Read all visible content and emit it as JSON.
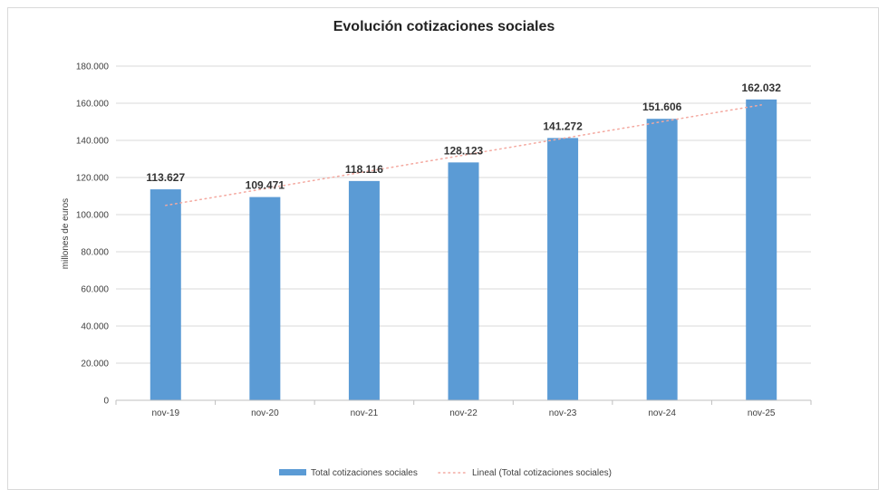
{
  "colors": {
    "bar": "#5b9bd5",
    "trend": "#f4a9a0",
    "grid": "#d9d9d9",
    "axis": "#bfbfbf"
  },
  "chart_data": {
    "type": "bar",
    "title": "Evolución cotizaciones sociales",
    "xlabel": "",
    "ylabel": "millones de euros",
    "categories": [
      "nov-19",
      "nov-20",
      "nov-21",
      "nov-22",
      "nov-23",
      "nov-24",
      "nov-25"
    ],
    "series": [
      {
        "name": "Total cotizaciones sociales",
        "values": [
          113627,
          109471,
          118116,
          128123,
          141272,
          151606,
          162032
        ],
        "labels": [
          "113.627",
          "109.471",
          "118.116",
          "128.123",
          "141.272",
          "151.606",
          "162.032"
        ]
      }
    ],
    "trendline": {
      "name": "Lineal (Total cotizaciones sociales)",
      "type": "linear",
      "style": "dotted"
    },
    "ylim": [
      0,
      180000
    ],
    "yticks": [
      0,
      20000,
      40000,
      60000,
      80000,
      100000,
      120000,
      140000,
      160000,
      180000
    ],
    "ytick_labels": [
      "0",
      "20.000",
      "40.000",
      "60.000",
      "80.000",
      "100.000",
      "120.000",
      "140.000",
      "160.000",
      "180.000"
    ],
    "grid": true,
    "legend": "bottom"
  }
}
